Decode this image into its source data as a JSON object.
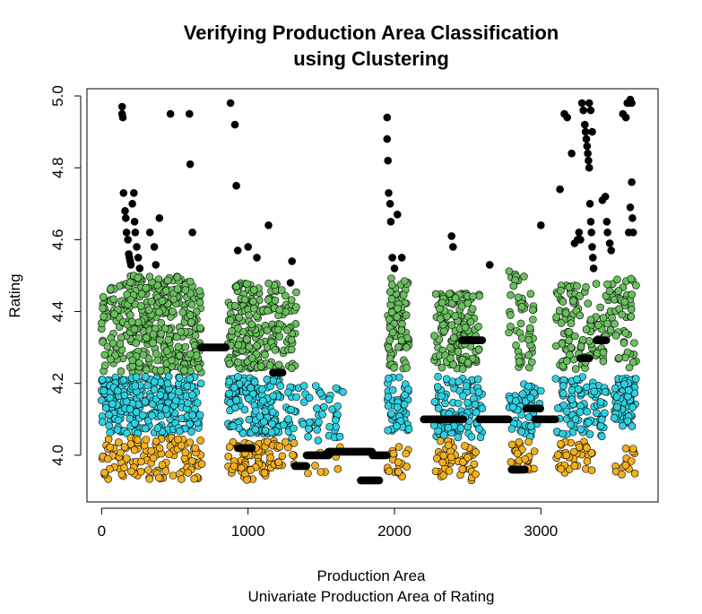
{
  "chart_data": {
    "type": "scatter",
    "title": "Verifying Production Area Classification",
    "subtitle": "using Clustering",
    "xlabel": "Production Area",
    "xlabel_sub": "Univariate Production Area of Rating",
    "ylabel": "Rating",
    "xlim": [
      -100,
      3800
    ],
    "ylim": [
      3.87,
      5.02
    ],
    "x_ticks": [
      0,
      1000,
      2000,
      3000
    ],
    "y_ticks": [
      4.0,
      4.2,
      4.4,
      4.6,
      4.8,
      5.0
    ],
    "x_tick_labels": [
      "0",
      "1000",
      "2000",
      "3000"
    ],
    "y_tick_labels": [
      "4.0",
      "4.2",
      "4.4",
      "4.6",
      "4.8",
      "5.0"
    ],
    "grid": false,
    "cluster_colors": {
      "black": "#000000",
      "green": "#6abf5f",
      "cyan": "#2ed0e0",
      "orange": "#f2b01e"
    },
    "clusters": [
      {
        "color": "green",
        "segments": [
          {
            "x_range": [
              0,
              680
            ],
            "y_range": [
              4.23,
              4.5
            ],
            "count": 380
          },
          {
            "x_range": [
              860,
              1200
            ],
            "y_range": [
              4.24,
              4.48
            ],
            "count": 180
          },
          {
            "x_range": [
              1200,
              1330
            ],
            "y_range": [
              4.24,
              4.46
            ],
            "count": 40
          },
          {
            "x_range": [
              1950,
              2100
            ],
            "y_range": [
              4.24,
              4.5
            ],
            "count": 80
          },
          {
            "x_range": [
              2270,
              2580
            ],
            "y_range": [
              4.24,
              4.45
            ],
            "count": 130
          },
          {
            "x_range": [
              2780,
              2960
            ],
            "y_range": [
              4.24,
              4.52
            ],
            "count": 50
          },
          {
            "x_range": [
              3100,
              3500
            ],
            "y_range": [
              4.24,
              4.48
            ],
            "count": 120
          },
          {
            "x_range": [
              3500,
              3650
            ],
            "y_range": [
              4.24,
              4.5
            ],
            "count": 45
          }
        ]
      },
      {
        "color": "cyan",
        "segments": [
          {
            "x_range": [
              0,
              680
            ],
            "y_range": [
              4.06,
              4.22
            ],
            "count": 280
          },
          {
            "x_range": [
              860,
              1230
            ],
            "y_range": [
              4.06,
              4.22
            ],
            "count": 150
          },
          {
            "x_range": [
              1240,
              1650
            ],
            "y_range": [
              4.04,
              4.2
            ],
            "count": 60
          },
          {
            "x_range": [
              1950,
              2100
            ],
            "y_range": [
              4.06,
              4.22
            ],
            "count": 50
          },
          {
            "x_range": [
              2270,
              2600
            ],
            "y_range": [
              4.05,
              4.22
            ],
            "count": 100
          },
          {
            "x_range": [
              2780,
              3000
            ],
            "y_range": [
              4.05,
              4.2
            ],
            "count": 50
          },
          {
            "x_range": [
              3100,
              3450
            ],
            "y_range": [
              4.05,
              4.22
            ],
            "count": 90
          },
          {
            "x_range": [
              3500,
              3650
            ],
            "y_range": [
              4.08,
              4.22
            ],
            "count": 70
          }
        ]
      },
      {
        "color": "orange",
        "segments": [
          {
            "x_range": [
              0,
              690
            ],
            "y_range": [
              3.93,
              4.05
            ],
            "count": 120
          },
          {
            "x_range": [
              860,
              1200
            ],
            "y_range": [
              3.93,
              4.04
            ],
            "count": 70
          },
          {
            "x_range": [
              1200,
              1330
            ],
            "y_range": [
              3.96,
              4.04
            ],
            "count": 15
          },
          {
            "x_range": [
              1400,
              1650
            ],
            "y_range": [
              3.94,
              4.03
            ],
            "count": 10
          },
          {
            "x_range": [
              1950,
              2100
            ],
            "y_range": [
              3.94,
              4.04
            ],
            "count": 20
          },
          {
            "x_range": [
              2280,
              2560
            ],
            "y_range": [
              3.93,
              4.04
            ],
            "count": 50
          },
          {
            "x_range": [
              2780,
              2960
            ],
            "y_range": [
              3.95,
              4.04
            ],
            "count": 25
          },
          {
            "x_range": [
              3100,
              3350
            ],
            "y_range": [
              3.95,
              4.04
            ],
            "count": 35
          },
          {
            "x_range": [
              3500,
              3650
            ],
            "y_range": [
              3.94,
              4.02
            ],
            "count": 15
          }
        ]
      },
      {
        "color": "black",
        "runs": [
          {
            "x_range": [
              680,
              850
            ],
            "y": 4.3
          },
          {
            "x_range": [
              930,
              1030
            ],
            "y": 4.02
          },
          {
            "x_range": [
              1170,
              1240
            ],
            "y": 4.23
          },
          {
            "x_range": [
              1320,
              1400
            ],
            "y": 3.97
          },
          {
            "x_range": [
              1400,
              1550
            ],
            "y": 4.0
          },
          {
            "x_range": [
              1550,
              1750
            ],
            "y": 4.01
          },
          {
            "x_range": [
              1750,
              1850
            ],
            "y": 4.01
          },
          {
            "x_range": [
              1770,
              1900
            ],
            "y": 3.93
          },
          {
            "x_range": [
              1850,
              1950
            ],
            "y": 4.0
          },
          {
            "x_range": [
              2200,
              2350
            ],
            "y": 4.1
          },
          {
            "x_range": [
              2350,
              2470
            ],
            "y": 4.1
          },
          {
            "x_range": [
              2460,
              2600
            ],
            "y": 4.32
          },
          {
            "x_range": [
              2580,
              2780
            ],
            "y": 4.1
          },
          {
            "x_range": [
              2800,
              2890
            ],
            "y": 3.96
          },
          {
            "x_range": [
              2900,
              3000
            ],
            "y": 4.13
          },
          {
            "x_range": [
              2960,
              3100
            ],
            "y": 4.1
          },
          {
            "x_range": [
              3270,
              3330
            ],
            "y": 4.27
          },
          {
            "x_range": [
              3380,
              3450
            ],
            "y": 4.32
          }
        ],
        "points": [
          [
            140,
            4.97
          ],
          [
            140,
            4.95
          ],
          [
            145,
            4.94
          ],
          [
            150,
            4.73
          ],
          [
            160,
            4.68
          ],
          [
            165,
            4.66
          ],
          [
            170,
            4.62
          ],
          [
            180,
            4.6
          ],
          [
            185,
            4.56
          ],
          [
            190,
            4.55
          ],
          [
            195,
            4.54
          ],
          [
            200,
            4.53
          ],
          [
            210,
            4.7
          ],
          [
            220,
            4.73
          ],
          [
            225,
            4.65
          ],
          [
            230,
            4.62
          ],
          [
            240,
            4.58
          ],
          [
            250,
            4.55
          ],
          [
            260,
            4.52
          ],
          [
            330,
            4.62
          ],
          [
            360,
            4.58
          ],
          [
            370,
            4.53
          ],
          [
            395,
            4.66
          ],
          [
            470,
            4.95
          ],
          [
            600,
            4.95
          ],
          [
            605,
            4.81
          ],
          [
            620,
            4.62
          ],
          [
            880,
            4.98
          ],
          [
            910,
            4.92
          ],
          [
            920,
            4.75
          ],
          [
            930,
            4.57
          ],
          [
            1000,
            4.58
          ],
          [
            1060,
            4.55
          ],
          [
            1140,
            4.64
          ],
          [
            1300,
            4.54
          ],
          [
            1290,
            4.48
          ],
          [
            1950,
            4.94
          ],
          [
            1950,
            4.88
          ],
          [
            1955,
            4.82
          ],
          [
            1960,
            4.73
          ],
          [
            1970,
            4.7
          ],
          [
            1975,
            4.65
          ],
          [
            1985,
            4.55
          ],
          [
            2000,
            4.52
          ],
          [
            2020,
            4.67
          ],
          [
            2050,
            4.55
          ],
          [
            2390,
            4.61
          ],
          [
            2400,
            4.58
          ],
          [
            2650,
            4.53
          ],
          [
            3000,
            4.64
          ],
          [
            3130,
            4.74
          ],
          [
            3160,
            4.95
          ],
          [
            3180,
            4.94
          ],
          [
            3210,
            4.84
          ],
          [
            3230,
            4.59
          ],
          [
            3250,
            4.6
          ],
          [
            3260,
            4.62
          ],
          [
            3270,
            4.6
          ],
          [
            3280,
            4.98
          ],
          [
            3290,
            4.96
          ],
          [
            3300,
            4.92
          ],
          [
            3305,
            4.9
          ],
          [
            3310,
            4.88
          ],
          [
            3315,
            4.86
          ],
          [
            3320,
            4.84
          ],
          [
            3325,
            4.82
          ],
          [
            3330,
            4.8
          ],
          [
            3335,
            4.7
          ],
          [
            3340,
            4.65
          ],
          [
            3345,
            4.62
          ],
          [
            3350,
            4.58
          ],
          [
            3355,
            4.55
          ],
          [
            3360,
            4.52
          ],
          [
            3330,
            4.98
          ],
          [
            3340,
            4.96
          ],
          [
            3350,
            4.9
          ],
          [
            3420,
            4.71
          ],
          [
            3440,
            4.72
          ],
          [
            3450,
            4.65
          ],
          [
            3455,
            4.62
          ],
          [
            3470,
            4.59
          ],
          [
            3480,
            4.57
          ],
          [
            3560,
            4.95
          ],
          [
            3580,
            4.94
          ],
          [
            3590,
            4.98
          ],
          [
            3600,
            4.98
          ],
          [
            3610,
            4.99
          ],
          [
            3620,
            4.98
          ],
          [
            3600,
            4.62
          ],
          [
            3610,
            4.69
          ],
          [
            3620,
            4.76
          ],
          [
            3625,
            4.66
          ],
          [
            3630,
            4.62
          ]
        ]
      }
    ]
  }
}
